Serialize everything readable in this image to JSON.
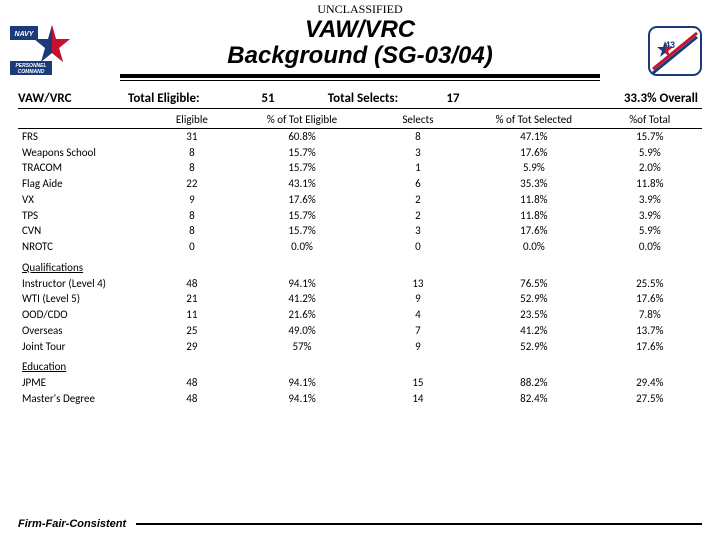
{
  "classification": "UNCLASSIFIED",
  "title_line1": "VAW/VRC",
  "title_line2": "Background (SG-03/04)",
  "page_num": "43",
  "summary": {
    "community": "VAW/VRC",
    "te_label": "Total Eligible:",
    "te_val": "51",
    "ts_label": "Total Selects:",
    "ts_val": "17",
    "overall": "33.3% Overall"
  },
  "columns": {
    "c1": "",
    "c2": "Eligible",
    "c3": "% of Tot Eligible",
    "c4": "Selects",
    "c5": "% of Tot Selected",
    "c6": "%of Total"
  },
  "sections": [
    {
      "heading": null,
      "rows": [
        {
          "label": "FRS",
          "eligible": "31",
          "pct_e": "60.8%",
          "selects": "8",
          "pct_s": "47.1%",
          "pct_t": "15.7%"
        },
        {
          "label": "Weapons School",
          "eligible": "8",
          "pct_e": "15.7%",
          "selects": "3",
          "pct_s": "17.6%",
          "pct_t": "5.9%"
        },
        {
          "label": "TRACOM",
          "eligible": "8",
          "pct_e": "15.7%",
          "selects": "1",
          "pct_s": "5.9%",
          "pct_t": "2.0%"
        },
        {
          "label": "Flag Aide",
          "eligible": "22",
          "pct_e": "43.1%",
          "selects": "6",
          "pct_s": "35.3%",
          "pct_t": "11.8%"
        },
        {
          "label": "VX",
          "eligible": "9",
          "pct_e": "17.6%",
          "selects": "2",
          "pct_s": "11.8%",
          "pct_t": "3.9%"
        },
        {
          "label": "TPS",
          "eligible": "8",
          "pct_e": "15.7%",
          "selects": "2",
          "pct_s": "11.8%",
          "pct_t": "3.9%"
        },
        {
          "label": "CVN",
          "eligible": "8",
          "pct_e": "15.7%",
          "selects": "3",
          "pct_s": "17.6%",
          "pct_t": "5.9%"
        },
        {
          "label": "NROTC",
          "eligible": "0",
          "pct_e": "0.0%",
          "selects": "0",
          "pct_s": "0.0%",
          "pct_t": "0.0%"
        }
      ]
    },
    {
      "heading": "Qualifications",
      "rows": [
        {
          "label": "Instructor (Level 4)",
          "eligible": "48",
          "pct_e": "94.1%",
          "selects": "13",
          "pct_s": "76.5%",
          "pct_t": "25.5%"
        },
        {
          "label": "WTI (Level 5)",
          "eligible": "21",
          "pct_e": "41.2%",
          "selects": "9",
          "pct_s": "52.9%",
          "pct_t": "17.6%"
        },
        {
          "label": "OOD/CDO",
          "eligible": "11",
          "pct_e": "21.6%",
          "selects": "4",
          "pct_s": "23.5%",
          "pct_t": "7.8%"
        },
        {
          "label": "Overseas",
          "eligible": "25",
          "pct_e": "49.0%",
          "selects": "7",
          "pct_s": "41.2%",
          "pct_t": "13.7%"
        },
        {
          "label": "Joint Tour",
          "eligible": "29",
          "pct_e": "57%",
          "selects": "9",
          "pct_s": "52.9%",
          "pct_t": "17.6%"
        }
      ]
    },
    {
      "heading": "Education",
      "rows": [
        {
          "label": "JPME",
          "eligible": "48",
          "pct_e": "94.1%",
          "selects": "15",
          "pct_s": "88.2%",
          "pct_t": "29.4%"
        },
        {
          "label": "Master's Degree",
          "eligible": "48",
          "pct_e": "94.1%",
          "selects": "14",
          "pct_s": "82.4%",
          "pct_t": "27.5%"
        }
      ]
    }
  ],
  "footer": "Firm-Fair-Consistent",
  "colors": {
    "navy_blue": "#1a3a7a",
    "red": "#c8102e",
    "black": "#000000",
    "white": "#ffffff"
  }
}
